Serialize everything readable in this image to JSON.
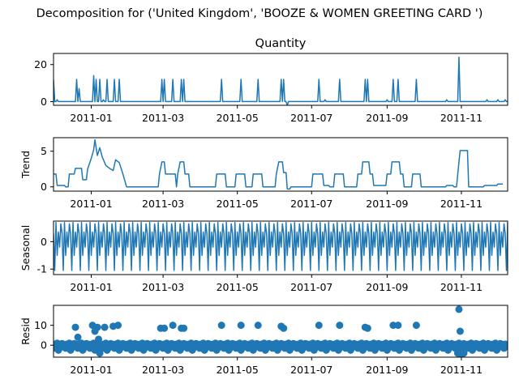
{
  "figure_title": "Decomposition for ('United Kingdom', 'BOOZE & WOMEN GREETING CARD ')",
  "colors": {
    "line": "#1f77b4",
    "marker": "#1f77b4",
    "axis": "#000000",
    "background": "#ffffff"
  },
  "chart_data": [
    {
      "type": "line",
      "title": "Quantity",
      "xlabel": "",
      "ylabel": "",
      "x_range": [
        "2010-12-01",
        "2011-12-09"
      ],
      "ylim": [
        -2,
        26
      ],
      "yticks": [
        0,
        20
      ],
      "xticks": [
        "2011-01",
        "2011-03",
        "2011-05",
        "2011-07",
        "2011-09",
        "2011-11"
      ],
      "grid": false,
      "baseline": 0,
      "spikes": [
        {
          "x": "2010-12-01",
          "y": 12
        },
        {
          "x": "2010-12-04",
          "y": 1
        },
        {
          "x": "2010-12-20",
          "y": 12
        },
        {
          "x": "2010-12-22",
          "y": 7
        },
        {
          "x": "2011-01-03",
          "y": 14
        },
        {
          "x": "2011-01-05",
          "y": 12
        },
        {
          "x": "2011-01-08",
          "y": 12
        },
        {
          "x": "2011-01-11",
          "y": 1
        },
        {
          "x": "2011-01-14",
          "y": 12
        },
        {
          "x": "2011-01-20",
          "y": 12
        },
        {
          "x": "2011-01-24",
          "y": 12
        },
        {
          "x": "2011-02-28",
          "y": 12
        },
        {
          "x": "2011-03-02",
          "y": 12
        },
        {
          "x": "2011-03-09",
          "y": 12
        },
        {
          "x": "2011-03-16",
          "y": 12
        },
        {
          "x": "2011-03-18",
          "y": 12
        },
        {
          "x": "2011-04-18",
          "y": 12
        },
        {
          "x": "2011-05-04",
          "y": 12
        },
        {
          "x": "2011-05-18",
          "y": 12
        },
        {
          "x": "2011-06-06",
          "y": 12
        },
        {
          "x": "2011-06-08",
          "y": 12
        },
        {
          "x": "2011-06-11",
          "y": -2
        },
        {
          "x": "2011-07-07",
          "y": 12
        },
        {
          "x": "2011-07-12",
          "y": 1
        },
        {
          "x": "2011-07-24",
          "y": 12
        },
        {
          "x": "2011-08-14",
          "y": 12
        },
        {
          "x": "2011-08-16",
          "y": 12
        },
        {
          "x": "2011-09-01",
          "y": 1
        },
        {
          "x": "2011-09-06",
          "y": 12
        },
        {
          "x": "2011-09-10",
          "y": 12
        },
        {
          "x": "2011-09-25",
          "y": 12
        },
        {
          "x": "2011-10-20",
          "y": 1
        },
        {
          "x": "2011-10-30",
          "y": 24
        },
        {
          "x": "2011-11-22",
          "y": 1
        },
        {
          "x": "2011-12-01",
          "y": 1
        },
        {
          "x": "2011-12-07",
          "y": 1
        }
      ]
    },
    {
      "type": "line",
      "title": "",
      "xlabel": "",
      "ylabel": "Trend",
      "x_range": [
        "2010-12-01",
        "2011-12-09"
      ],
      "ylim": [
        -0.6,
        6.9
      ],
      "yticks": [
        0,
        5
      ],
      "xticks": [
        "2011-01",
        "2011-03",
        "2011-05",
        "2011-07",
        "2011-09",
        "2011-11"
      ],
      "grid": false,
      "points": [
        {
          "x": "2010-12-01",
          "y": 1.8
        },
        {
          "x": "2010-12-03",
          "y": 1.8
        },
        {
          "x": "2010-12-04",
          "y": 0.2
        },
        {
          "x": "2010-12-10",
          "y": 0.2
        },
        {
          "x": "2010-12-11",
          "y": 0
        },
        {
          "x": "2010-12-13",
          "y": 0
        },
        {
          "x": "2010-12-14",
          "y": 1.8
        },
        {
          "x": "2010-12-18",
          "y": 1.8
        },
        {
          "x": "2010-12-19",
          "y": 2.6
        },
        {
          "x": "2010-12-24",
          "y": 2.6
        },
        {
          "x": "2010-12-25",
          "y": 1
        },
        {
          "x": "2010-12-28",
          "y": 1
        },
        {
          "x": "2010-12-29",
          "y": 2.5
        },
        {
          "x": "2011-01-01",
          "y": 4
        },
        {
          "x": "2011-01-03",
          "y": 5.2
        },
        {
          "x": "2011-01-04",
          "y": 6.6
        },
        {
          "x": "2011-01-06",
          "y": 4.4
        },
        {
          "x": "2011-01-08",
          "y": 5.5
        },
        {
          "x": "2011-01-10",
          "y": 4.2
        },
        {
          "x": "2011-01-13",
          "y": 3
        },
        {
          "x": "2011-01-16",
          "y": 2.6
        },
        {
          "x": "2011-01-19",
          "y": 2.3
        },
        {
          "x": "2011-01-21",
          "y": 3.8
        },
        {
          "x": "2011-01-24",
          "y": 3.4
        },
        {
          "x": "2011-01-27",
          "y": 1.8
        },
        {
          "x": "2011-01-30",
          "y": 0
        },
        {
          "x": "2011-02-25",
          "y": 0
        },
        {
          "x": "2011-02-26",
          "y": 1.8
        },
        {
          "x": "2011-02-28",
          "y": 3.5
        },
        {
          "x": "2011-03-02",
          "y": 3.5
        },
        {
          "x": "2011-03-03",
          "y": 1.8
        },
        {
          "x": "2011-03-11",
          "y": 1.8
        },
        {
          "x": "2011-03-12",
          "y": 0
        },
        {
          "x": "2011-03-13",
          "y": 1.8
        },
        {
          "x": "2011-03-15",
          "y": 3.5
        },
        {
          "x": "2011-03-18",
          "y": 3.5
        },
        {
          "x": "2011-03-19",
          "y": 1.8
        },
        {
          "x": "2011-03-22",
          "y": 1.8
        },
        {
          "x": "2011-03-23",
          "y": 0
        },
        {
          "x": "2011-04-13",
          "y": 0
        },
        {
          "x": "2011-04-14",
          "y": 1.8
        },
        {
          "x": "2011-04-21",
          "y": 1.8
        },
        {
          "x": "2011-04-22",
          "y": 0
        },
        {
          "x": "2011-04-29",
          "y": 0
        },
        {
          "x": "2011-04-30",
          "y": 1.8
        },
        {
          "x": "2011-05-07",
          "y": 1.8
        },
        {
          "x": "2011-05-08",
          "y": 0
        },
        {
          "x": "2011-05-13",
          "y": 0
        },
        {
          "x": "2011-05-14",
          "y": 1.8
        },
        {
          "x": "2011-05-21",
          "y": 1.8
        },
        {
          "x": "2011-05-22",
          "y": 0
        },
        {
          "x": "2011-06-01",
          "y": 0
        },
        {
          "x": "2011-06-02",
          "y": 1.8
        },
        {
          "x": "2011-06-04",
          "y": 3.5
        },
        {
          "x": "2011-06-07",
          "y": 3.5
        },
        {
          "x": "2011-06-08",
          "y": 2
        },
        {
          "x": "2011-06-10",
          "y": 2
        },
        {
          "x": "2011-06-11",
          "y": -0.3
        },
        {
          "x": "2011-06-13",
          "y": -0.3
        },
        {
          "x": "2011-06-14",
          "y": 0
        },
        {
          "x": "2011-07-01",
          "y": 0
        },
        {
          "x": "2011-07-02",
          "y": 1.8
        },
        {
          "x": "2011-07-10",
          "y": 1.8
        },
        {
          "x": "2011-07-11",
          "y": 0.2
        },
        {
          "x": "2011-07-15",
          "y": 0.2
        },
        {
          "x": "2011-07-16",
          "y": 0
        },
        {
          "x": "2011-07-19",
          "y": 0
        },
        {
          "x": "2011-07-20",
          "y": 1.8
        },
        {
          "x": "2011-07-27",
          "y": 1.8
        },
        {
          "x": "2011-07-28",
          "y": 0
        },
        {
          "x": "2011-08-07",
          "y": 0
        },
        {
          "x": "2011-08-08",
          "y": 1.8
        },
        {
          "x": "2011-08-11",
          "y": 1.8
        },
        {
          "x": "2011-08-12",
          "y": 3.5
        },
        {
          "x": "2011-08-17",
          "y": 3.5
        },
        {
          "x": "2011-08-18",
          "y": 1.8
        },
        {
          "x": "2011-08-20",
          "y": 1.8
        },
        {
          "x": "2011-08-21",
          "y": 0.2
        },
        {
          "x": "2011-08-31",
          "y": 0.2
        },
        {
          "x": "2011-09-01",
          "y": 1.8
        },
        {
          "x": "2011-09-04",
          "y": 1.8
        },
        {
          "x": "2011-09-05",
          "y": 3.5
        },
        {
          "x": "2011-09-11",
          "y": 3.5
        },
        {
          "x": "2011-09-12",
          "y": 1.8
        },
        {
          "x": "2011-09-14",
          "y": 1.8
        },
        {
          "x": "2011-09-15",
          "y": 0
        },
        {
          "x": "2011-09-21",
          "y": 0
        },
        {
          "x": "2011-09-22",
          "y": 1.8
        },
        {
          "x": "2011-09-28",
          "y": 1.8
        },
        {
          "x": "2011-09-29",
          "y": 0
        },
        {
          "x": "2011-10-19",
          "y": 0
        },
        {
          "x": "2011-10-20",
          "y": 0.2
        },
        {
          "x": "2011-10-25",
          "y": 0.2
        },
        {
          "x": "2011-10-26",
          "y": 0
        },
        {
          "x": "2011-10-28",
          "y": 0
        },
        {
          "x": "2011-10-30",
          "y": 3.5
        },
        {
          "x": "2011-10-31",
          "y": 5.1
        },
        {
          "x": "2011-11-06",
          "y": 5.1
        },
        {
          "x": "2011-11-07",
          "y": 0
        },
        {
          "x": "2011-11-19",
          "y": 0
        },
        {
          "x": "2011-11-20",
          "y": 0.2
        },
        {
          "x": "2011-11-30",
          "y": 0.2
        },
        {
          "x": "2011-12-01",
          "y": 0.4
        },
        {
          "x": "2011-12-05",
          "y": 0.4
        }
      ]
    },
    {
      "type": "line",
      "title": "",
      "xlabel": "",
      "ylabel": "Seasonal",
      "x_range": [
        "2010-12-01",
        "2011-12-09"
      ],
      "ylim": [
        -1.2,
        0.75
      ],
      "yticks": [
        -1,
        0
      ],
      "xticks": [
        "2011-01",
        "2011-03",
        "2011-05",
        "2011-07",
        "2011-09",
        "2011-11"
      ],
      "grid": false,
      "pattern_start": "2010-12-01",
      "pattern_end": "2011-12-09",
      "period_days": 7,
      "weekly_pattern": [
        0.3,
        -1.05,
        0.7,
        -0.5,
        0.35,
        -0.2,
        0.65
      ]
    },
    {
      "type": "scatter",
      "title": "",
      "xlabel": "",
      "ylabel": "Resid",
      "x_range": [
        "2010-12-01",
        "2011-12-09"
      ],
      "ylim": [
        -6,
        20
      ],
      "yticks": [
        0,
        10
      ],
      "xticks": [
        "2011-01",
        "2011-03",
        "2011-05",
        "2011-07",
        "2011-09",
        "2011-11"
      ],
      "grid": false,
      "baseline": 0,
      "dense_band": {
        "start": "2010-12-01",
        "end": "2011-12-08",
        "values": [
          -1.5,
          0.5,
          -0.3,
          1,
          -2.5,
          0.2,
          -1,
          0.8,
          -0.5,
          0.4
        ]
      },
      "points": [
        {
          "x": "2010-12-19",
          "y": 9
        },
        {
          "x": "2010-12-21",
          "y": 4
        },
        {
          "x": "2011-01-02",
          "y": 10
        },
        {
          "x": "2011-01-04",
          "y": 7
        },
        {
          "x": "2011-01-06",
          "y": 9
        },
        {
          "x": "2011-01-07",
          "y": 3
        },
        {
          "x": "2011-01-12",
          "y": 9
        },
        {
          "x": "2011-01-19",
          "y": 9.5
        },
        {
          "x": "2011-01-23",
          "y": 10
        },
        {
          "x": "2011-01-08",
          "y": -4
        },
        {
          "x": "2011-02-27",
          "y": 8.5
        },
        {
          "x": "2011-03-02",
          "y": 8.5
        },
        {
          "x": "2011-03-09",
          "y": 10
        },
        {
          "x": "2011-03-16",
          "y": 8.5
        },
        {
          "x": "2011-03-18",
          "y": 8.5
        },
        {
          "x": "2011-04-18",
          "y": 10
        },
        {
          "x": "2011-05-04",
          "y": 10
        },
        {
          "x": "2011-05-18",
          "y": 10
        },
        {
          "x": "2011-06-06",
          "y": 9.5
        },
        {
          "x": "2011-06-08",
          "y": 8.5
        },
        {
          "x": "2011-07-07",
          "y": 10
        },
        {
          "x": "2011-07-24",
          "y": 10
        },
        {
          "x": "2011-08-14",
          "y": 9
        },
        {
          "x": "2011-08-16",
          "y": 8.5
        },
        {
          "x": "2011-09-06",
          "y": 10
        },
        {
          "x": "2011-09-10",
          "y": 10
        },
        {
          "x": "2011-09-25",
          "y": 10
        },
        {
          "x": "2011-10-30",
          "y": 18
        },
        {
          "x": "2011-10-31",
          "y": 7
        },
        {
          "x": "2011-10-29",
          "y": -4
        },
        {
          "x": "2011-11-01",
          "y": -4.5
        },
        {
          "x": "2011-11-03",
          "y": -4
        }
      ]
    }
  ]
}
